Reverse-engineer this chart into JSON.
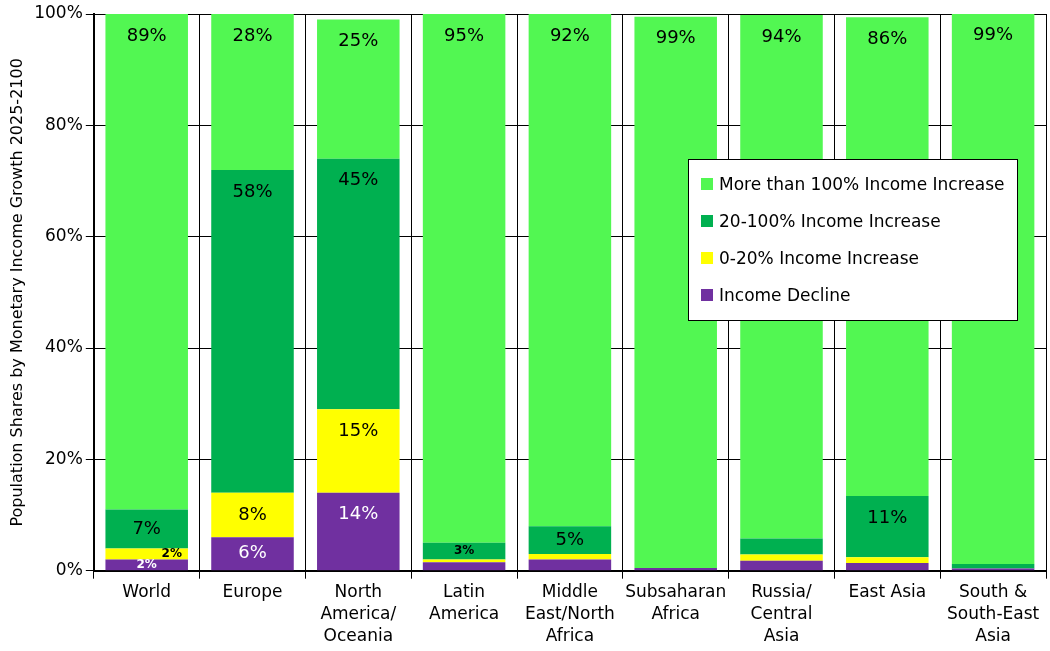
{
  "chart_data": {
    "type": "bar",
    "stacked": true,
    "ylabel": "Population Shares by Monetary Income Growth 2025-2100",
    "categories": [
      "World",
      "Europe",
      "North America/Oceania",
      "Latin America",
      "Middle East/North Africa",
      "Subsaharan Africa",
      "Russia/Central Asia",
      "East Asia",
      "South & South-East Asia"
    ],
    "series": [
      {
        "name": "Income Decline",
        "color": "#7030a0",
        "values": [
          2,
          6,
          14,
          1.5,
          2,
          0.5,
          1.8,
          1.4,
          0.4
        ],
        "value_labels": [
          "2%",
          "6%",
          "14%",
          null,
          null,
          null,
          null,
          null,
          null
        ]
      },
      {
        "name": "0-20% Income Increase",
        "color": "#ffff00",
        "values": [
          2,
          8,
          15,
          0.5,
          1,
          null,
          1.1,
          1,
          null
        ],
        "value_labels": [
          "2%",
          "8%",
          "15%",
          null,
          null,
          null,
          null,
          null,
          null
        ]
      },
      {
        "name": "20-100% Income Increase",
        "color": "#00b050",
        "values": [
          7,
          58,
          45,
          3,
          5,
          null,
          2.9,
          11,
          0.8
        ],
        "value_labels": [
          "7%",
          "58%",
          "45%",
          "3%",
          "5%",
          null,
          null,
          "11%",
          null
        ]
      },
      {
        "name": "More than 100% Income Increase",
        "color": "#52f752",
        "values": [
          89,
          28,
          25,
          95,
          92,
          99,
          94,
          86,
          99
        ],
        "value_labels": [
          "89%",
          "28%",
          "25%",
          "95%",
          "92%",
          "99%",
          "94%",
          "86%",
          "99%"
        ]
      }
    ],
    "ylim": [
      0,
      100
    ],
    "yticks": [
      {
        "value": 0,
        "label": "0%"
      },
      {
        "value": 20,
        "label": "20%"
      },
      {
        "value": 40,
        "label": "40%"
      },
      {
        "value": 60,
        "label": "60%"
      },
      {
        "value": 80,
        "label": "80%"
      },
      {
        "value": 100,
        "label": "100%"
      }
    ],
    "grid": true,
    "legend": "right"
  }
}
